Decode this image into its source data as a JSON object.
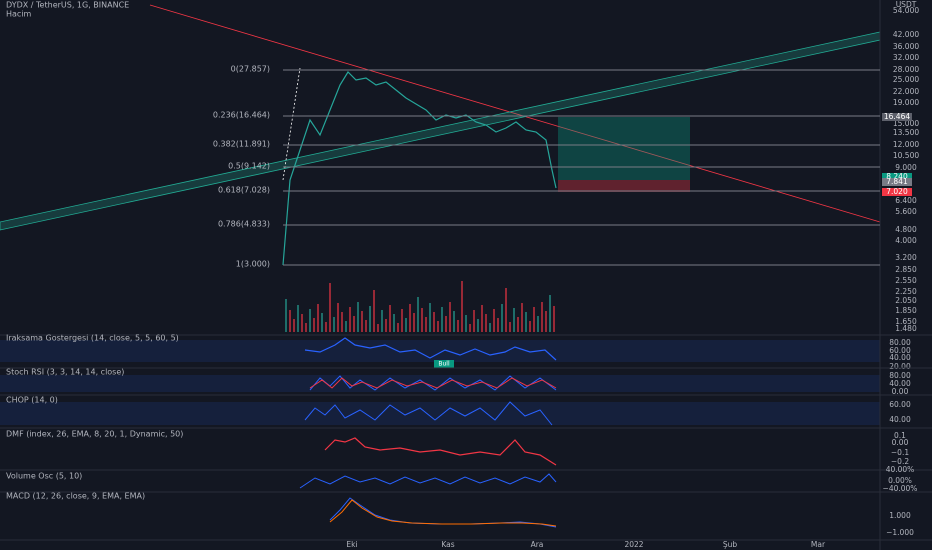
{
  "header": {
    "symbol": "DYDX / TetherUS, 1G, BINANCE",
    "volume": "Hacim"
  },
  "price_axis": {
    "unit": "USDT",
    "labels": [
      "54.000",
      "42.000",
      "36.000",
      "32.000",
      "28.000",
      "25.000",
      "22.000",
      "19.000",
      "15.000",
      "13.500",
      "12.000",
      "10.500",
      "9.000",
      "6.400",
      "5.600",
      "4.800",
      "4.000",
      "3.200",
      "2.850",
      "2.550",
      "2.250",
      "2.050",
      "1.850",
      "1.650",
      "1.480"
    ],
    "highlights": [
      "16.464",
      "8.240",
      "7.841",
      "7.020"
    ]
  },
  "fib_levels": [
    "0(27.857)",
    "0.236(16.464)",
    "0.382(11.891)",
    "0.5(9.142)",
    "0.618(7.028)",
    "0.786(4.833)",
    "1(3.000)"
  ],
  "panes": [
    {
      "title": "Iraksama Gostergesi (14, close, 5, 5, 60, 5)",
      "axis": [
        "80.00",
        "60.00",
        "40.00",
        "20.00"
      ],
      "tag": "Bull"
    },
    {
      "title": "Stoch RSI (3, 3, 14, 14, close)",
      "axis": [
        "80.00",
        "40.00",
        "0.00"
      ]
    },
    {
      "title": "CHOP (14, 0)",
      "axis": [
        "60.00",
        "40.00"
      ]
    },
    {
      "title": "DMF (index, 26, EMA, 8, 20, 1, Dynamic, 50)",
      "axis": [
        "0.1",
        "0.00",
        "−0.1",
        "−0.2"
      ]
    },
    {
      "title": "Volume Osc (5, 10)",
      "axis": [
        "40.00%",
        "0.00%",
        "−40.00%"
      ]
    },
    {
      "title": "MACD (12, 26, close, 9, EMA, EMA)",
      "axis": [
        "1.000",
        "−1.000"
      ]
    }
  ],
  "time_axis": [
    "Eki",
    "Kas",
    "Ara",
    "2022",
    "Şub",
    "Mar"
  ]
}
